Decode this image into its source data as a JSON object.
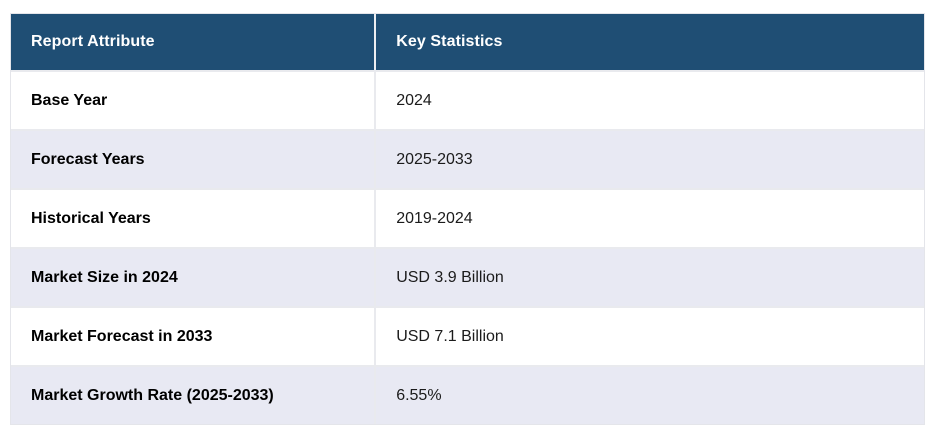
{
  "table": {
    "columns": [
      {
        "label": "Report Attribute"
      },
      {
        "label": "Key Statistics"
      }
    ],
    "rows": [
      {
        "attribute": "Base Year",
        "value": "2024"
      },
      {
        "attribute": "Forecast Years",
        "value": "2025-2033"
      },
      {
        "attribute": "Historical Years",
        "value": "2019-2024"
      },
      {
        "attribute": "Market Size in 2024",
        "value": "USD 3.9 Billion"
      },
      {
        "attribute": "Market Forecast in 2033",
        "value": "USD 7.1 Billion"
      },
      {
        "attribute": "Market Growth Rate (2025-2033)",
        "value": "6.55%"
      }
    ],
    "colors": {
      "header_bg": "#1F4E74",
      "header_text": "#FFFFFF",
      "row_bg": "#FFFFFF",
      "row_alt_bg": "#E8E9F3",
      "divider": "#E9EAEE",
      "attribute_text": "#000000",
      "value_text": "#1B1B1B"
    }
  },
  "chart_data": {
    "type": "table",
    "title": "",
    "columns": [
      "Report Attribute",
      "Key Statistics"
    ],
    "rows": [
      [
        "Base Year",
        "2024"
      ],
      [
        "Forecast Years",
        "2025-2033"
      ],
      [
        "Historical Years",
        "2019-2024"
      ],
      [
        "Market Size in 2024",
        "USD 3.9 Billion"
      ],
      [
        "Market Forecast in 2033",
        "USD 7.1 Billion"
      ],
      [
        "Market Growth Rate (2025-2033)",
        "6.55%"
      ]
    ],
    "notes": {
      "market_size_2024_usd_billion": 3.9,
      "market_forecast_2033_usd_billion": 7.1,
      "cagr_percent_2025_2033": 6.55
    }
  }
}
